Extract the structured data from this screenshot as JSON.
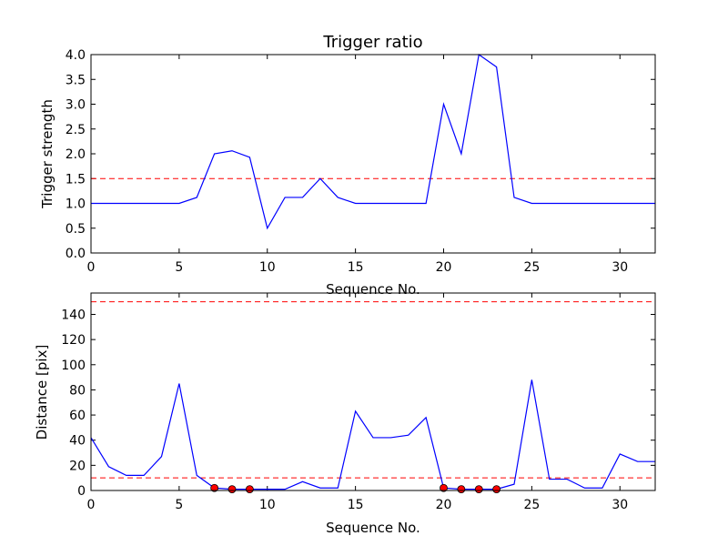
{
  "chart_data": [
    {
      "type": "line",
      "title": "Trigger ratio",
      "xlabel": "Sequence No.",
      "ylabel": "Trigger strength",
      "xlim": [
        0,
        32
      ],
      "ylim": [
        0,
        4.0
      ],
      "xticks": [
        "0",
        "5",
        "10",
        "15",
        "20",
        "25",
        "30"
      ],
      "yticks": [
        "0.0",
        "0.5",
        "1.0",
        "1.5",
        "2.0",
        "2.5",
        "3.0",
        "3.5",
        "4.0"
      ],
      "grid": false,
      "series": [
        {
          "color": "#0000ff",
          "x": [
            0,
            1,
            2,
            3,
            4,
            5,
            6,
            7,
            8,
            9,
            10,
            11,
            12,
            13,
            14,
            15,
            16,
            17,
            18,
            19,
            20,
            21,
            22,
            23,
            24,
            25,
            26,
            27,
            28,
            29,
            30,
            31,
            32
          ],
          "y": [
            1.0,
            1.0,
            1.0,
            1.0,
            1.0,
            1.0,
            1.12,
            2.0,
            2.06,
            1.93,
            0.5,
            1.12,
            1.12,
            1.5,
            1.12,
            1.0,
            1.0,
            1.0,
            1.0,
            1.0,
            3.0,
            2.0,
            4.0,
            3.75,
            1.12,
            1.0,
            1.0,
            1.0,
            1.0,
            1.0,
            1.0,
            1.0,
            1.0
          ]
        }
      ],
      "hlines": [
        {
          "y": 1.5,
          "color": "#ff0000",
          "style": "dashed"
        }
      ]
    },
    {
      "type": "line",
      "title": "",
      "xlabel": "Sequence No.",
      "ylabel": "Distance [pix]",
      "xlim": [
        0,
        32
      ],
      "ylim": [
        0,
        157
      ],
      "xticks": [
        "0",
        "5",
        "10",
        "15",
        "20",
        "25",
        "30"
      ],
      "yticks": [
        "0",
        "20",
        "40",
        "60",
        "80",
        "100",
        "120",
        "140"
      ],
      "grid": false,
      "series": [
        {
          "color": "#0000ff",
          "x": [
            0,
            1,
            2,
            3,
            4,
            5,
            6,
            7,
            8,
            9,
            10,
            11,
            12,
            13,
            14,
            15,
            16,
            17,
            18,
            19,
            20,
            21,
            22,
            23,
            24,
            25,
            26,
            27,
            28,
            29,
            30,
            31,
            32
          ],
          "y": [
            42,
            19,
            12,
            12,
            27,
            85,
            12,
            2,
            1,
            1,
            1,
            1,
            7,
            2,
            2,
            63,
            42,
            42,
            44,
            58,
            2,
            1,
            1,
            1,
            5,
            88,
            9,
            9,
            2,
            2,
            29,
            23,
            23
          ]
        }
      ],
      "markers": {
        "color": "#ff0000",
        "x": [
          7,
          8,
          9,
          20,
          21,
          22,
          23
        ],
        "y": [
          2,
          1,
          1,
          2,
          1,
          1,
          1
        ]
      },
      "hlines": [
        {
          "y": 150,
          "color": "#ff0000",
          "style": "dashed"
        },
        {
          "y": 10,
          "color": "#ff0000",
          "style": "dashed"
        }
      ]
    }
  ]
}
